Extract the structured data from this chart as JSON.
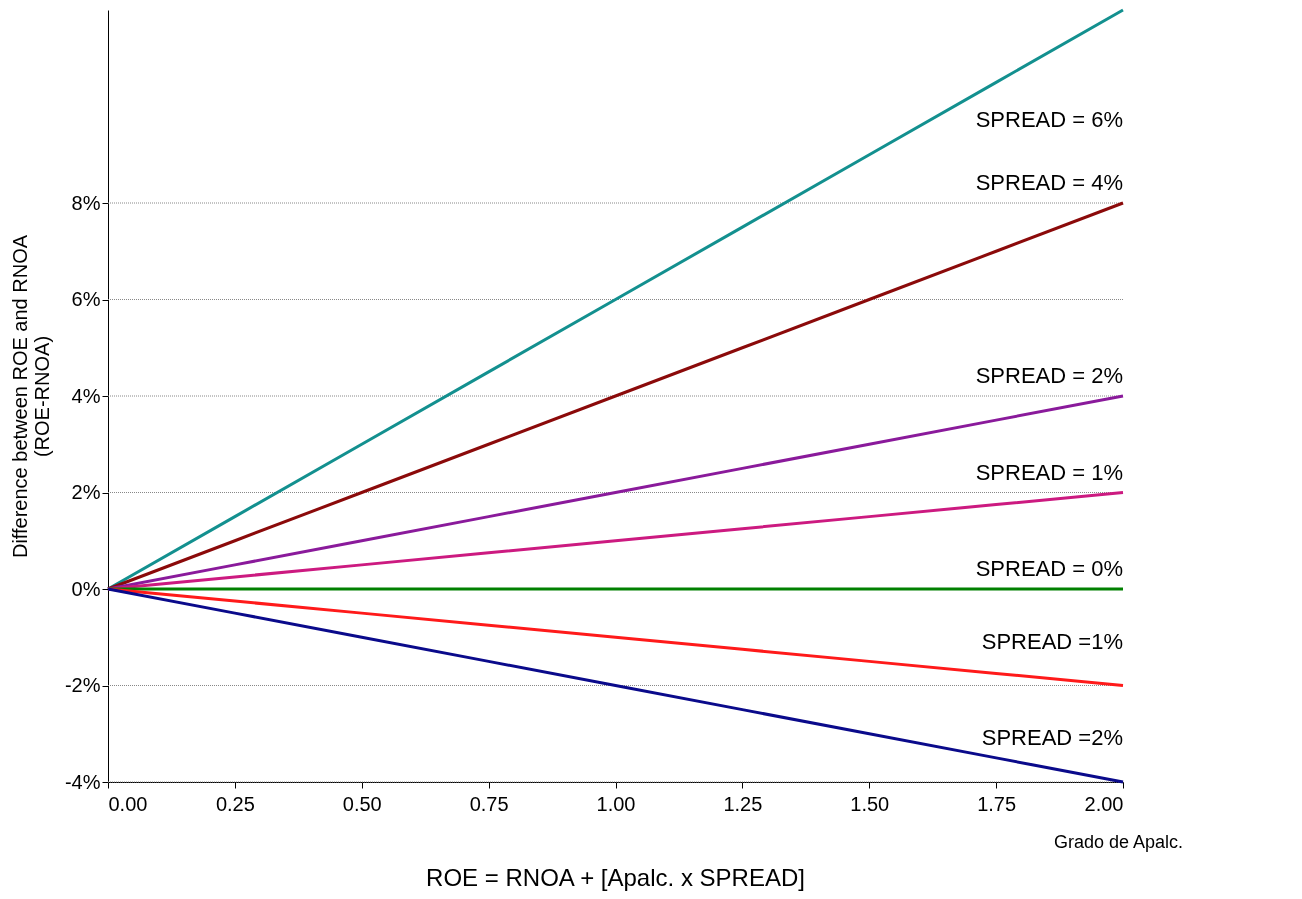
{
  "chart_data": {
    "type": "line",
    "xlabel": "Grado de Apalc.",
    "ylabel": "Difference between ROE and RNOA\n(ROE-RNOA)",
    "annotations": [
      "ROE = RNOA + [Apalc. x SPREAD]"
    ],
    "x": [
      0,
      0.25,
      0.5,
      0.75,
      1,
      1.25,
      1.5,
      1.75,
      2
    ],
    "xlim": [
      0,
      2
    ],
    "xticks": [
      {
        "value": 0,
        "label": "0.00"
      },
      {
        "value": 0.25,
        "label": "0.25"
      },
      {
        "value": 0.5,
        "label": "0.50"
      },
      {
        "value": 0.75,
        "label": "0.75"
      },
      {
        "value": 1,
        "label": "1.00"
      },
      {
        "value": 1.25,
        "label": "1.25"
      },
      {
        "value": 1.5,
        "label": "1.50"
      },
      {
        "value": 1.75,
        "label": "1.75"
      },
      {
        "value": 2,
        "label": "2.00"
      }
    ],
    "ylim": [
      -4,
      12
    ],
    "yticks": [
      {
        "value": -4,
        "label": "-4%"
      },
      {
        "value": -2,
        "label": "-2%"
      },
      {
        "value": 0,
        "label": "0%"
      },
      {
        "value": 2,
        "label": "2%"
      },
      {
        "value": 4,
        "label": "4%"
      },
      {
        "value": 6,
        "label": "6%"
      },
      {
        "value": 8,
        "label": "8%"
      }
    ],
    "grid": "y",
    "legend": false,
    "marker": "none",
    "line_style": "solid",
    "series": [
      {
        "name": "SPREAD = 6%",
        "color": "#13908f",
        "values": [
          0,
          1.5,
          3,
          4.5,
          6,
          7.5,
          9,
          10.5,
          12
        ]
      },
      {
        "name": "SPREAD = 4%",
        "color": "#8b0a0a",
        "values": [
          0,
          1,
          2,
          3,
          4,
          5,
          6,
          7,
          8
        ]
      },
      {
        "name": "SPREAD = 2%",
        "color": "#8a1a9b",
        "values": [
          0,
          0.5,
          1,
          1.5,
          2,
          2.5,
          3,
          3.5,
          4
        ]
      },
      {
        "name": "SPREAD = 1%",
        "color": "#cc1a80",
        "values": [
          0,
          0.25,
          0.5,
          0.75,
          1,
          1.25,
          1.5,
          1.75,
          2
        ]
      },
      {
        "name": "SPREAD = 0%",
        "color": "#008000",
        "values": [
          0,
          0,
          0,
          0,
          0,
          0,
          0,
          0,
          0
        ]
      },
      {
        "name": "SPREAD =1%",
        "color": "#ff1a1a",
        "values": [
          0,
          -0.25,
          -0.5,
          -0.75,
          -1,
          -1.25,
          -1.5,
          -1.75,
          -2
        ]
      },
      {
        "name": "SPREAD =2%",
        "color": "#0a0a8b",
        "values": [
          0,
          -0.5,
          -1,
          -1.5,
          -2,
          -2.5,
          -3,
          -3.5,
          -4
        ]
      }
    ]
  }
}
